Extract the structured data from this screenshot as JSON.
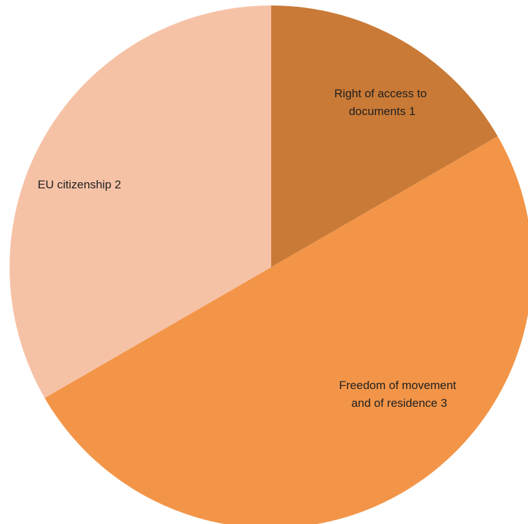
{
  "chart_data": {
    "type": "pie",
    "start_angle_deg": 0,
    "direction": "clockwise",
    "slices": [
      {
        "name": "Right of access to documents",
        "value": 1,
        "color": "#C97A37",
        "label_lines": [
          "Right of access to",
          "documents 1"
        ]
      },
      {
        "name": "Freedom of movement and of residence",
        "value": 3,
        "color": "#F39548",
        "label_lines": [
          "Freedom of movement",
          "and of residence 3"
        ]
      },
      {
        "name": "EU citizenship",
        "value": 2,
        "color": "#F6C2A6",
        "label_lines": [
          "EU citizenship 2"
        ]
      }
    ],
    "legend": "none"
  }
}
